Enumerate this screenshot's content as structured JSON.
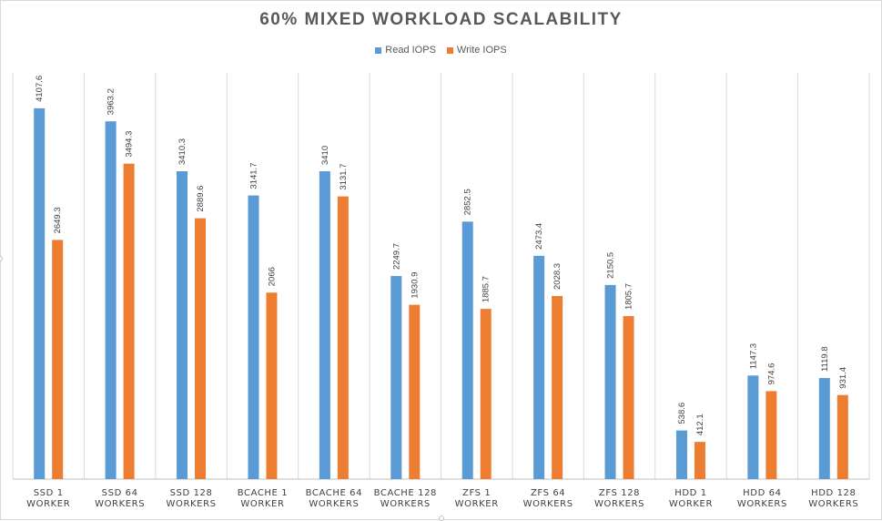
{
  "chart_data": {
    "type": "bar",
    "title": "60% MIXED WORKLOAD  SCALABILITY",
    "categories": [
      [
        "SSD 1",
        "WORKER"
      ],
      [
        "SSD 64",
        "WORKERS"
      ],
      [
        "SSD 128",
        "WORKERS"
      ],
      [
        "BCACHE 1",
        "WORKER"
      ],
      [
        "BCACHE 64",
        "WORKERS"
      ],
      [
        "BCACHE 128",
        "WORKERS"
      ],
      [
        "ZFS 1",
        "WORKER"
      ],
      [
        "ZFS 64",
        "WORKERS"
      ],
      [
        "ZFS 128",
        "WORKERS"
      ],
      [
        "HDD 1",
        "WORKER"
      ],
      [
        "HDD 64",
        "WORKERS"
      ],
      [
        "HDD 128",
        "WORKERS"
      ]
    ],
    "series": [
      {
        "name": "Read IOPS",
        "color": "#5b9bd5",
        "values": [
          4107.6,
          3963.2,
          3410.3,
          3141.7,
          3410,
          2249.7,
          2852.5,
          2473.4,
          2150.5,
          538.6,
          1147.3,
          1119.8
        ],
        "labels": [
          "4107.6",
          "3963.2",
          "3410.3",
          "3141.7",
          "3410",
          "2249.7",
          "2852.5",
          "2473.4",
          "2150.5",
          "538.6",
          "1147.3",
          "1119.8"
        ]
      },
      {
        "name": "Write IOPS",
        "color": "#ed7d31",
        "values": [
          2649.3,
          3494.3,
          2889.6,
          2066,
          3131.7,
          1930.9,
          1885.7,
          2028.3,
          1805.7,
          412.1,
          974.6,
          931.4
        ],
        "labels": [
          "2649.3",
          "3494.3",
          "2889.6",
          "2066",
          "3131.7",
          "1930.9",
          "1885.7",
          "2028.3",
          "1805.7",
          "412.1",
          "974.6",
          "931.4"
        ]
      }
    ],
    "ylim": [
      0,
      4500
    ],
    "legend_position": "top",
    "grid": "vertical category separators",
    "data_labels": "rotated above bars"
  }
}
